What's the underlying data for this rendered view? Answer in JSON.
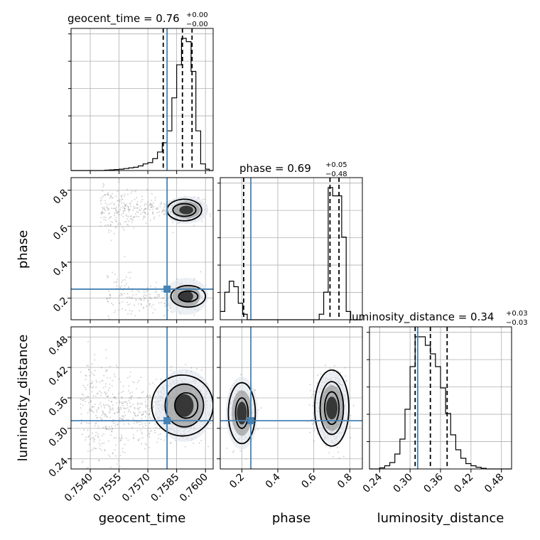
{
  "chart_data": {
    "type": "corner",
    "parameters": [
      "geocent_time",
      "phase",
      "luminosity_distance"
    ],
    "colors": {
      "truth": "#4682b4",
      "hist": "#000000",
      "grid": "#b0b0b0",
      "points": "#666666"
    },
    "grid": true,
    "titles": [
      {
        "text": "geocent_time = 0.76",
        "upper": "+0.00",
        "lower": "−0.00"
      },
      {
        "text": "phase = 0.69",
        "upper": "+0.05",
        "lower": "−0.48"
      },
      {
        "text": "luminosity_distance = 0.34",
        "upper": "+0.03",
        "lower": "−0.03"
      }
    ],
    "axis_labels": [
      "geocent_time",
      "phase",
      "luminosity_distance"
    ],
    "ranges": [
      [
        0.753,
        0.7604
      ],
      [
        0.08,
        0.87
      ],
      [
        0.22,
        0.5
      ]
    ],
    "ticks": [
      {
        "values": [
          0.754,
          0.7555,
          0.757,
          0.7585,
          0.76
        ],
        "labels": [
          "0.7540",
          "0.7555",
          "0.7570",
          "0.7585",
          "0.7600"
        ]
      },
      {
        "values": [
          0.2,
          0.4,
          0.6,
          0.8
        ],
        "labels": [
          "0.2",
          "0.4",
          "0.6",
          "0.8"
        ]
      },
      {
        "values": [
          0.24,
          0.3,
          0.36,
          0.42,
          0.48
        ],
        "labels": [
          "0.24",
          "0.30",
          "0.36",
          "0.42",
          "0.48"
        ]
      }
    ],
    "truths": [
      0.758,
      0.25,
      0.315
    ],
    "quantiles": [
      [
        0.7578,
        0.7588,
        0.7593
      ],
      [
        0.21,
        0.69,
        0.74
      ],
      [
        0.31,
        0.34,
        0.373
      ]
    ],
    "histograms": [
      {
        "edges": [
          0.753,
          0.75325,
          0.7535,
          0.75375,
          0.754,
          0.75425,
          0.7545,
          0.75475,
          0.755,
          0.75525,
          0.7555,
          0.75575,
          0.756,
          0.75625,
          0.7565,
          0.75675,
          0.757,
          0.75725,
          0.7575,
          0.75775,
          0.758,
          0.75825,
          0.7585,
          0.75875,
          0.759,
          0.75925,
          0.7595,
          0.75975,
          0.76,
          0.7602,
          0.7604
        ],
        "counts": [
          0,
          0,
          0,
          0,
          0,
          0,
          0,
          0.5,
          1,
          1.5,
          2,
          3,
          4,
          5,
          7,
          10,
          12,
          18,
          28,
          42,
          60,
          110,
          160,
          200,
          195,
          150,
          60,
          10,
          2,
          0
        ]
      },
      {
        "edges": [
          0.08,
          0.105,
          0.13,
          0.155,
          0.18,
          0.205,
          0.23,
          0.255,
          0.28,
          0.305,
          0.33,
          0.355,
          0.38,
          0.405,
          0.43,
          0.455,
          0.48,
          0.505,
          0.53,
          0.555,
          0.58,
          0.605,
          0.63,
          0.655,
          0.68,
          0.705,
          0.73,
          0.755,
          0.78,
          0.805,
          0.83,
          0.855,
          0.87
        ],
        "counts": [
          3,
          10,
          14,
          12,
          6,
          2,
          0,
          0,
          0,
          0,
          0,
          0,
          0,
          0,
          0,
          0,
          0,
          0,
          0,
          0,
          0,
          0,
          2,
          10,
          48,
          45,
          45,
          30,
          3,
          0,
          0,
          0
        ]
      },
      {
        "edges": [
          0.22,
          0.23,
          0.24,
          0.25,
          0.26,
          0.27,
          0.28,
          0.29,
          0.3,
          0.31,
          0.32,
          0.33,
          0.34,
          0.35,
          0.36,
          0.37,
          0.38,
          0.39,
          0.4,
          0.41,
          0.42,
          0.43,
          0.44,
          0.45,
          0.46,
          0.47,
          0.48,
          0.49,
          0.5
        ],
        "counts": [
          0,
          0,
          0.5,
          1.5,
          3,
          7,
          14,
          28,
          48,
          62,
          62,
          58,
          54,
          48,
          38,
          26,
          16,
          9,
          5,
          2.5,
          1.5,
          0.8,
          0.3,
          0,
          0,
          0,
          0,
          0
        ]
      }
    ],
    "density_2d": [
      {
        "x": 0,
        "y": 1,
        "blobs": [
          {
            "cx": 0.759,
            "cy": 0.69,
            "sx": 0.00045,
            "sy": 0.03,
            "n": 500,
            "tail": "left",
            "tail_end": 0.7545,
            "tail_cy": 0.69
          },
          {
            "cx": 0.759,
            "cy": 0.21,
            "sx": 0.00045,
            "sy": 0.04,
            "n": 260,
            "tail": "left",
            "tail_end": 0.7548,
            "tail_cy": 0.2
          }
        ],
        "contours": [
          {
            "cx": 0.7589,
            "cy": 0.69,
            "rx": 0.0009,
            "ry": 0.06
          },
          {
            "cx": 0.7589,
            "cy": 0.69,
            "rx": 0.0006,
            "ry": 0.035
          },
          {
            "cx": 0.7591,
            "cy": 0.21,
            "rx": 0.0009,
            "ry": 0.06
          },
          {
            "cx": 0.7591,
            "cy": 0.21,
            "rx": 0.0005,
            "ry": 0.03
          }
        ]
      },
      {
        "x": 0,
        "y": 2,
        "blobs": [
          {
            "cx": 0.7589,
            "cy": 0.345,
            "sx": 0.0006,
            "sy": 0.028,
            "n": 900,
            "tail": "left",
            "tail_end": 0.7535,
            "tail_cy": 0.33
          }
        ],
        "contours": [
          {
            "cx": 0.7588,
            "cy": 0.345,
            "rx": 0.0016,
            "ry": 0.06
          },
          {
            "cx": 0.7589,
            "cy": 0.345,
            "rx": 0.001,
            "ry": 0.042
          },
          {
            "cx": 0.759,
            "cy": 0.345,
            "rx": 0.0006,
            "ry": 0.025
          }
        ]
      },
      {
        "x": 1,
        "y": 2,
        "blobs": [
          {
            "cx": 0.7,
            "cy": 0.34,
            "sx": 0.04,
            "sy": 0.028,
            "n": 1000
          },
          {
            "cx": 0.2,
            "cy": 0.33,
            "sx": 0.035,
            "sy": 0.028,
            "n": 320
          }
        ],
        "contours": [
          {
            "cx": 0.7,
            "cy": 0.34,
            "rx": 0.095,
            "ry": 0.075
          },
          {
            "cx": 0.7,
            "cy": 0.34,
            "rx": 0.065,
            "ry": 0.052
          },
          {
            "cx": 0.7,
            "cy": 0.34,
            "rx": 0.04,
            "ry": 0.032
          },
          {
            "cx": 0.2,
            "cy": 0.33,
            "rx": 0.075,
            "ry": 0.06
          },
          {
            "cx": 0.2,
            "cy": 0.33,
            "rx": 0.035,
            "ry": 0.03
          }
        ]
      }
    ]
  }
}
